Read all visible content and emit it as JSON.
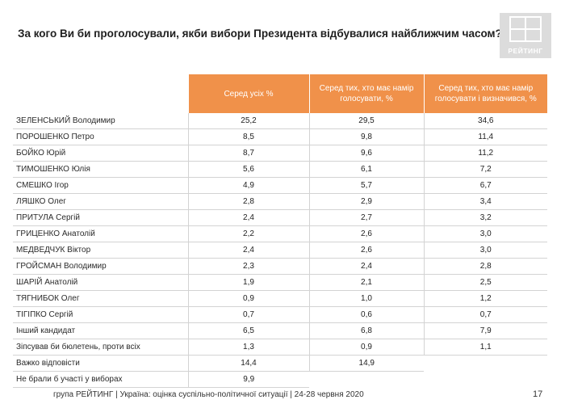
{
  "title": "За кого Ви би проголосували, якби вибори Президента відбувалися найближчим часом?",
  "logo_text": "РЕЙТИНГ",
  "columns": [
    "Серед усіх %",
    "Серед тих, хто має намір голосувати, %",
    "Серед тих, хто має намір голосувати і визначився, %"
  ],
  "rows": [
    {
      "name": "ЗЕЛЕНСЬКИЙ Володимир",
      "all": "25,2",
      "voters": "29,5",
      "decided": "34,6"
    },
    {
      "name": "ПОРОШЕНКО Петро",
      "all": "8,5",
      "voters": "9,8",
      "decided": "11,4"
    },
    {
      "name": "БОЙКО Юрій",
      "all": "8,7",
      "voters": "9,6",
      "decided": "11,2"
    },
    {
      "name": "ТИМОШЕНКО Юлія",
      "all": "5,6",
      "voters": "6,1",
      "decided": "7,2"
    },
    {
      "name": "СМЕШКО Ігор",
      "all": "4,9",
      "voters": "5,7",
      "decided": "6,7"
    },
    {
      "name": "ЛЯШКО Олег",
      "all": "2,8",
      "voters": "2,9",
      "decided": "3,4"
    },
    {
      "name": "ПРИТУЛА Сергій",
      "all": "2,4",
      "voters": "2,7",
      "decided": "3,2"
    },
    {
      "name": "ГРИЦЕНКО Анатолій",
      "all": "2,2",
      "voters": "2,6",
      "decided": "3,0"
    },
    {
      "name": "МЕДВЕДЧУК Віктор",
      "all": "2,4",
      "voters": "2,6",
      "decided": "3,0"
    },
    {
      "name": "ГРОЙСМАН Володимир",
      "all": "2,3",
      "voters": "2,4",
      "decided": "2,8"
    },
    {
      "name": "ШАРІЙ Анатолій",
      "all": "1,9",
      "voters": "2,1",
      "decided": "2,5"
    },
    {
      "name": "ТЯГНИБОК Олег",
      "all": "0,9",
      "voters": "1,0",
      "decided": "1,2"
    },
    {
      "name": "ТІГІПКО Сергій",
      "all": "0,7",
      "voters": "0,6",
      "decided": "0,7"
    },
    {
      "name": "Інший кандидат",
      "all": "6,5",
      "voters": "6,8",
      "decided": "7,9"
    },
    {
      "name": "Зіпсував би бюлетень, проти всіх",
      "all": "1,3",
      "voters": "0,9",
      "decided": "1,1"
    },
    {
      "name": "Важко відповісти",
      "all": "14,4",
      "voters": "14,9",
      "decided": ""
    },
    {
      "name": "Не брали б участі у виборах",
      "all": "9,9",
      "voters": "",
      "decided": ""
    }
  ],
  "footer": "група РЕЙТИНГ | Україна: оцінка суспільно-політичної ситуації | 24-28 червня 2020",
  "page_number": "17",
  "colors": {
    "header_orange": "#f0914a",
    "logo_gray": "#dcdcdc",
    "grid_line": "#d3d3d3"
  }
}
